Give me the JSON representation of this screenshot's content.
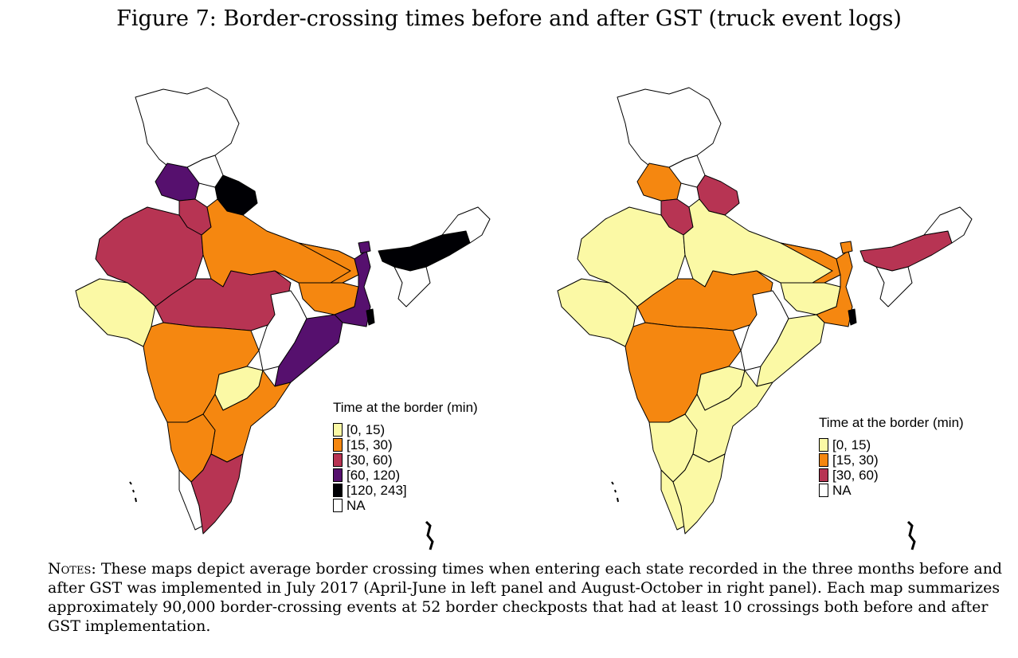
{
  "title": "Figure 7: Border-crossing times before and after GST (truck event logs)",
  "colors": {
    "c0_15": "#fbf9a5",
    "c15_30": "#f58710",
    "c30_60": "#b73453",
    "c60_120": "#56106e",
    "c120_243": "#000004",
    "na": "#ffffff"
  },
  "panels": {
    "before": {
      "legend_title": "Time at the border (min)",
      "legend_items": [
        {
          "label": "[0, 15)",
          "color": "#fbf9a5"
        },
        {
          "label": "[15, 30)",
          "color": "#f58710"
        },
        {
          "label": "[30, 60)",
          "color": "#b73453"
        },
        {
          "label": "[60, 120)",
          "color": "#56106e"
        },
        {
          "label": "[120, 243]",
          "color": "#000004"
        },
        {
          "label": "NA",
          "color": "#ffffff"
        }
      ]
    },
    "after": {
      "legend_title": "Time at the border (min)",
      "legend_items": [
        {
          "label": "[0, 15)",
          "color": "#fbf9a5"
        },
        {
          "label": "[15, 30)",
          "color": "#f58710"
        },
        {
          "label": "[30, 60)",
          "color": "#b73453"
        },
        {
          "label": "NA",
          "color": "#ffffff"
        }
      ]
    }
  },
  "notes": {
    "label": "Notes:",
    "text": "These maps depict average border crossing times when entering each state recorded in the three months before and after GST was implemented in July 2017 (April-June in left panel and August-October in right panel). Each map summarizes approximately 90,000 border-crossing events at 52 border checkposts that had at least 10 crossings both before and after GST implementation."
  }
}
